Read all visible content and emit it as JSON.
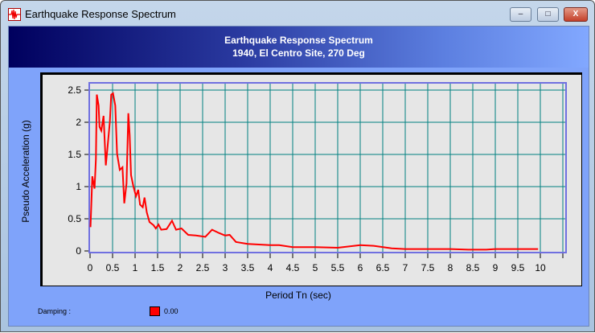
{
  "window": {
    "title": "Earthquake Response Spectrum",
    "minimize": "–",
    "maximize": "□",
    "close": "X"
  },
  "header": {
    "title": "Earthquake Response Spectrum",
    "subtitle": "1940, El Centro Site, 270 Deg"
  },
  "legend": {
    "label": "Damping :",
    "value": "0.00",
    "color": "#ff0000"
  },
  "chart_data": {
    "type": "line",
    "title": "Earthquake Response Spectrum",
    "subtitle": "1940, El Centro Site, 270 Deg",
    "xlabel": "Period Tn (sec)",
    "ylabel": "Pseudo Acceleration (g)",
    "xlim": [
      0,
      10.5
    ],
    "ylim": [
      0,
      2.5
    ],
    "xticks": [
      "0",
      "0.5",
      "1",
      "1.5",
      "2",
      "2.5",
      "3",
      "3.5",
      "4",
      "4.5",
      "5",
      "5.5",
      "6",
      "6.5",
      "7",
      "7.5",
      "8",
      "8.5",
      "9",
      "9.5",
      "10"
    ],
    "yticks": [
      "0",
      "0.5",
      "1",
      "1.5",
      "2",
      "2.5"
    ],
    "grid": true,
    "series": [
      {
        "name": "0.00",
        "color": "#ff0000",
        "x": [
          0.01,
          0.03,
          0.05,
          0.1,
          0.13,
          0.15,
          0.19,
          0.21,
          0.25,
          0.3,
          0.35,
          0.38,
          0.44,
          0.47,
          0.51,
          0.56,
          0.6,
          0.66,
          0.72,
          0.76,
          0.81,
          0.85,
          0.88,
          0.91,
          0.96,
          1.02,
          1.07,
          1.11,
          1.17,
          1.21,
          1.26,
          1.32,
          1.41,
          1.46,
          1.52,
          1.58,
          1.7,
          1.82,
          1.91,
          2.03,
          2.18,
          2.35,
          2.56,
          2.71,
          2.86,
          3.0,
          3.1,
          3.24,
          3.5,
          4.0,
          4.2,
          4.5,
          5.0,
          5.5,
          6.0,
          6.3,
          6.7,
          7.0,
          7.5,
          8.0,
          8.4,
          8.8,
          9.0,
          9.5,
          9.95
        ],
        "y": [
          0.37,
          0.76,
          1.16,
          0.97,
          1.43,
          2.43,
          2.26,
          1.93,
          1.87,
          2.1,
          1.33,
          1.55,
          2.01,
          2.43,
          2.45,
          2.26,
          1.51,
          1.26,
          1.3,
          0.74,
          1.05,
          2.14,
          1.8,
          1.18,
          1.01,
          0.85,
          0.95,
          0.72,
          0.68,
          0.83,
          0.6,
          0.45,
          0.4,
          0.35,
          0.41,
          0.33,
          0.34,
          0.47,
          0.33,
          0.35,
          0.25,
          0.24,
          0.22,
          0.33,
          0.28,
          0.24,
          0.25,
          0.14,
          0.11,
          0.09,
          0.09,
          0.06,
          0.06,
          0.05,
          0.09,
          0.08,
          0.04,
          0.03,
          0.03,
          0.03,
          0.02,
          0.02,
          0.03,
          0.03,
          0.03
        ]
      }
    ]
  }
}
